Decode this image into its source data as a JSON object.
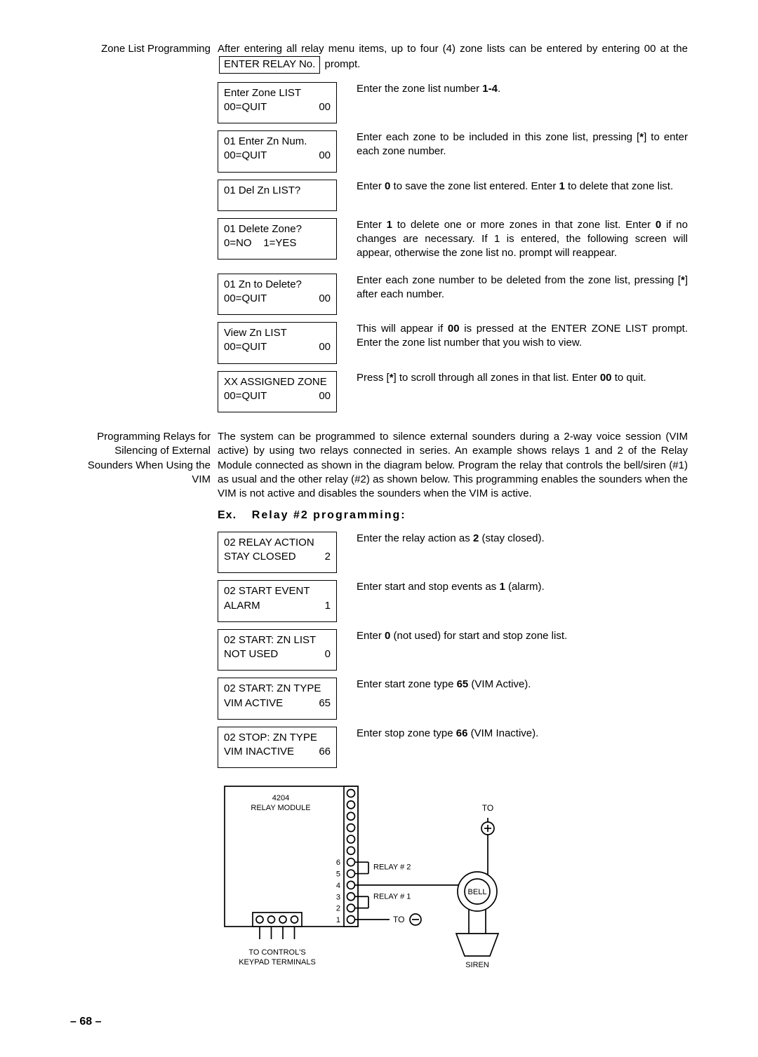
{
  "zoneList": {
    "sideHeading": "Zone List Programming",
    "introPart1": "After entering all relay menu items, up to four (4) zone lists can be entered by entering 00 at the ",
    "introBoxed": "ENTER RELAY No.",
    "introPart2": " prompt.",
    "items": [
      {
        "line1": "Enter Zone  LIST",
        "line2a": "00=QUIT",
        "line2b": "00",
        "descHtml": "Enter the zone list number <b>1-4</b>."
      },
      {
        "line1": "01  Enter Zn Num.",
        "line2a": "00=QUIT",
        "line2b": "00",
        "descHtml": "Enter each zone to be included in this zone list, pressing [<b>*</b>] to enter each zone number."
      },
      {
        "line1": "01  Del Zn LIST?",
        "oneline": true,
        "descHtml": "Enter <b>0</b> to save the zone list entered. Enter <b>1</b> to delete that zone list."
      },
      {
        "line1": "01 Delete Zone?",
        "line2a": "0=NO    1=YES",
        "line2b": "",
        "descHtml": "Enter <b>1</b> to delete one or more zones in that zone list. Enter <b>0</b> if no changes are necessary. If 1 is entered, the following screen will appear, otherwise the zone list no. prompt will reappear."
      },
      {
        "line1": "01  Zn to Delete?",
        "line2a": "00=QUIT",
        "line2b": "00",
        "descHtml": "Enter each zone number to be deleted from the zone list, pressing [<b>*</b>] after each number."
      },
      {
        "line1": "View Zn LIST",
        "line2a": "00=QUIT",
        "line2b": "00",
        "descHtml": "This will appear if <b>00</b> is pressed at the ENTER ZONE LIST prompt. Enter the zone list number that you wish to view."
      },
      {
        "line1": "XX ASSIGNED ZONE",
        "line2a": "00=QUIT",
        "line2b": "00",
        "descHtml": "Press [<b>*</b>] to scroll through all zones in that list. Enter <b>00</b> to quit."
      }
    ]
  },
  "relaySec": {
    "sideHeading": "Programming Relays for Silencing of External Sounders When Using the VIM",
    "para": "The system can be programmed to silence external sounders during a 2-way voice session (VIM active) by using two relays connected in series. An example shows relays 1 and 2 of the Relay Module connected as shown in the diagram below. Program the relay that controls the bell/siren (#1) as usual and the other relay (#2) as shown below. This programming enables the sounders when the VIM is not active and disables the sounders when the VIM is active.",
    "exHeadingA": "Ex.",
    "exHeadingB": "Relay  #2  programming:",
    "items": [
      {
        "line1": "02  RELAY ACTION",
        "line2a": "STAY CLOSED",
        "line2b": "2",
        "descHtml": "Enter the relay action as <b>2</b> (stay closed)."
      },
      {
        "line1": "02  START EVENT",
        "line2a": "ALARM",
        "line2b": "1",
        "descHtml": "Enter start and stop events as <b>1</b> (alarm)."
      },
      {
        "line1": "02 START: ZN LIST",
        "line2a": "NOT USED",
        "line2b": "0",
        "descHtml": "Enter <b>0</b> (not used) for start and stop zone list."
      },
      {
        "line1": "02 START: ZN TYPE",
        "line2a": "VIM ACTIVE",
        "line2b": "65",
        "descHtml": "Enter start zone type <b>65</b> (VIM Active)."
      },
      {
        "line1": "02 STOP: ZN TYPE",
        "line2a": "VIM INACTIVE",
        "line2b": "66",
        "descHtml": "Enter stop zone type <b>66</b> (VIM Inactive)."
      }
    ]
  },
  "diagram": {
    "moduleLine1": "4204",
    "moduleLine2": "RELAY MODULE",
    "terminalCaption1": "TO CONTROL'S",
    "terminalCaption2": "KEYPAD TERMINALS",
    "relay1": "RELAY # 1",
    "relay2": "RELAY # 2",
    "toPlus": "TO",
    "toNeg": "TO",
    "bell": "BELL",
    "siren": "SIREN",
    "pinLabels": [
      "1",
      "2",
      "3",
      "4",
      "5",
      "6"
    ],
    "stroke": "#000000",
    "fill": "#ffffff",
    "fontFamily": "Arial",
    "pinFontSize": 11,
    "labelFontSize": 12,
    "tinyFontSize": 11
  },
  "pageNumber": "–  68  –"
}
